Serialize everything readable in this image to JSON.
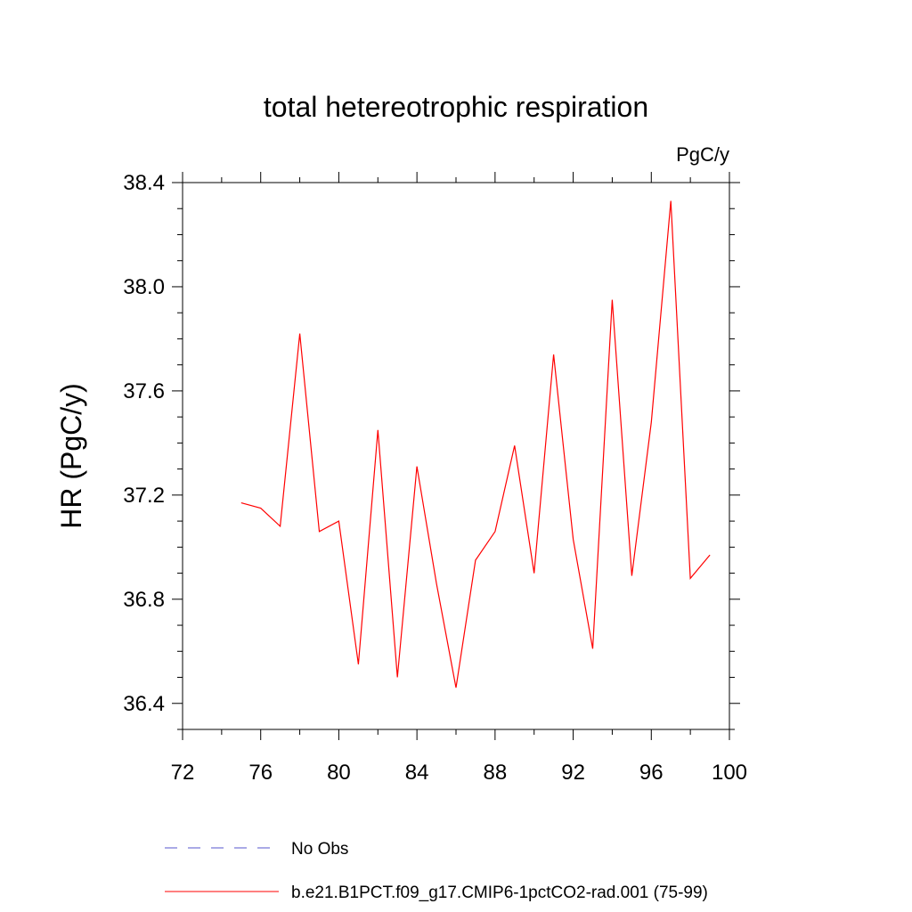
{
  "chart_data": {
    "type": "line",
    "title": "total hetereotrophic respiration",
    "units": "PgC/y",
    "xlabel": "",
    "ylabel": "HR  (PgC/y)",
    "xlim": [
      72,
      100
    ],
    "ylim": [
      36.3,
      38.45
    ],
    "xticks": [
      72,
      76,
      80,
      84,
      88,
      92,
      96,
      100
    ],
    "yticks": [
      "36.4",
      "36.8",
      "37.2",
      "37.6",
      "38.0",
      "38.4"
    ],
    "grid": false,
    "legend_position": "bottom",
    "series": [
      {
        "name": "No Obs",
        "style": "dashed",
        "color": "#5555cc",
        "x": [],
        "y": []
      },
      {
        "name": "b.e21.B1PCT.f09_g17.CMIP6-1pctCO2-rad.001 (75-99)",
        "style": "solid",
        "color": "#ff0000",
        "x": [
          75,
          76,
          77,
          78,
          79,
          80,
          81,
          82,
          83,
          84,
          85,
          86,
          87,
          88,
          89,
          90,
          91,
          92,
          93,
          94,
          95,
          96,
          97,
          98,
          99
        ],
        "y": [
          37.17,
          37.15,
          37.08,
          37.82,
          37.06,
          37.1,
          36.55,
          37.45,
          36.5,
          37.31,
          36.86,
          36.46,
          36.95,
          37.06,
          37.39,
          36.9,
          37.74,
          37.03,
          36.61,
          37.95,
          36.89,
          37.48,
          38.33,
          36.88,
          36.97
        ]
      }
    ]
  }
}
